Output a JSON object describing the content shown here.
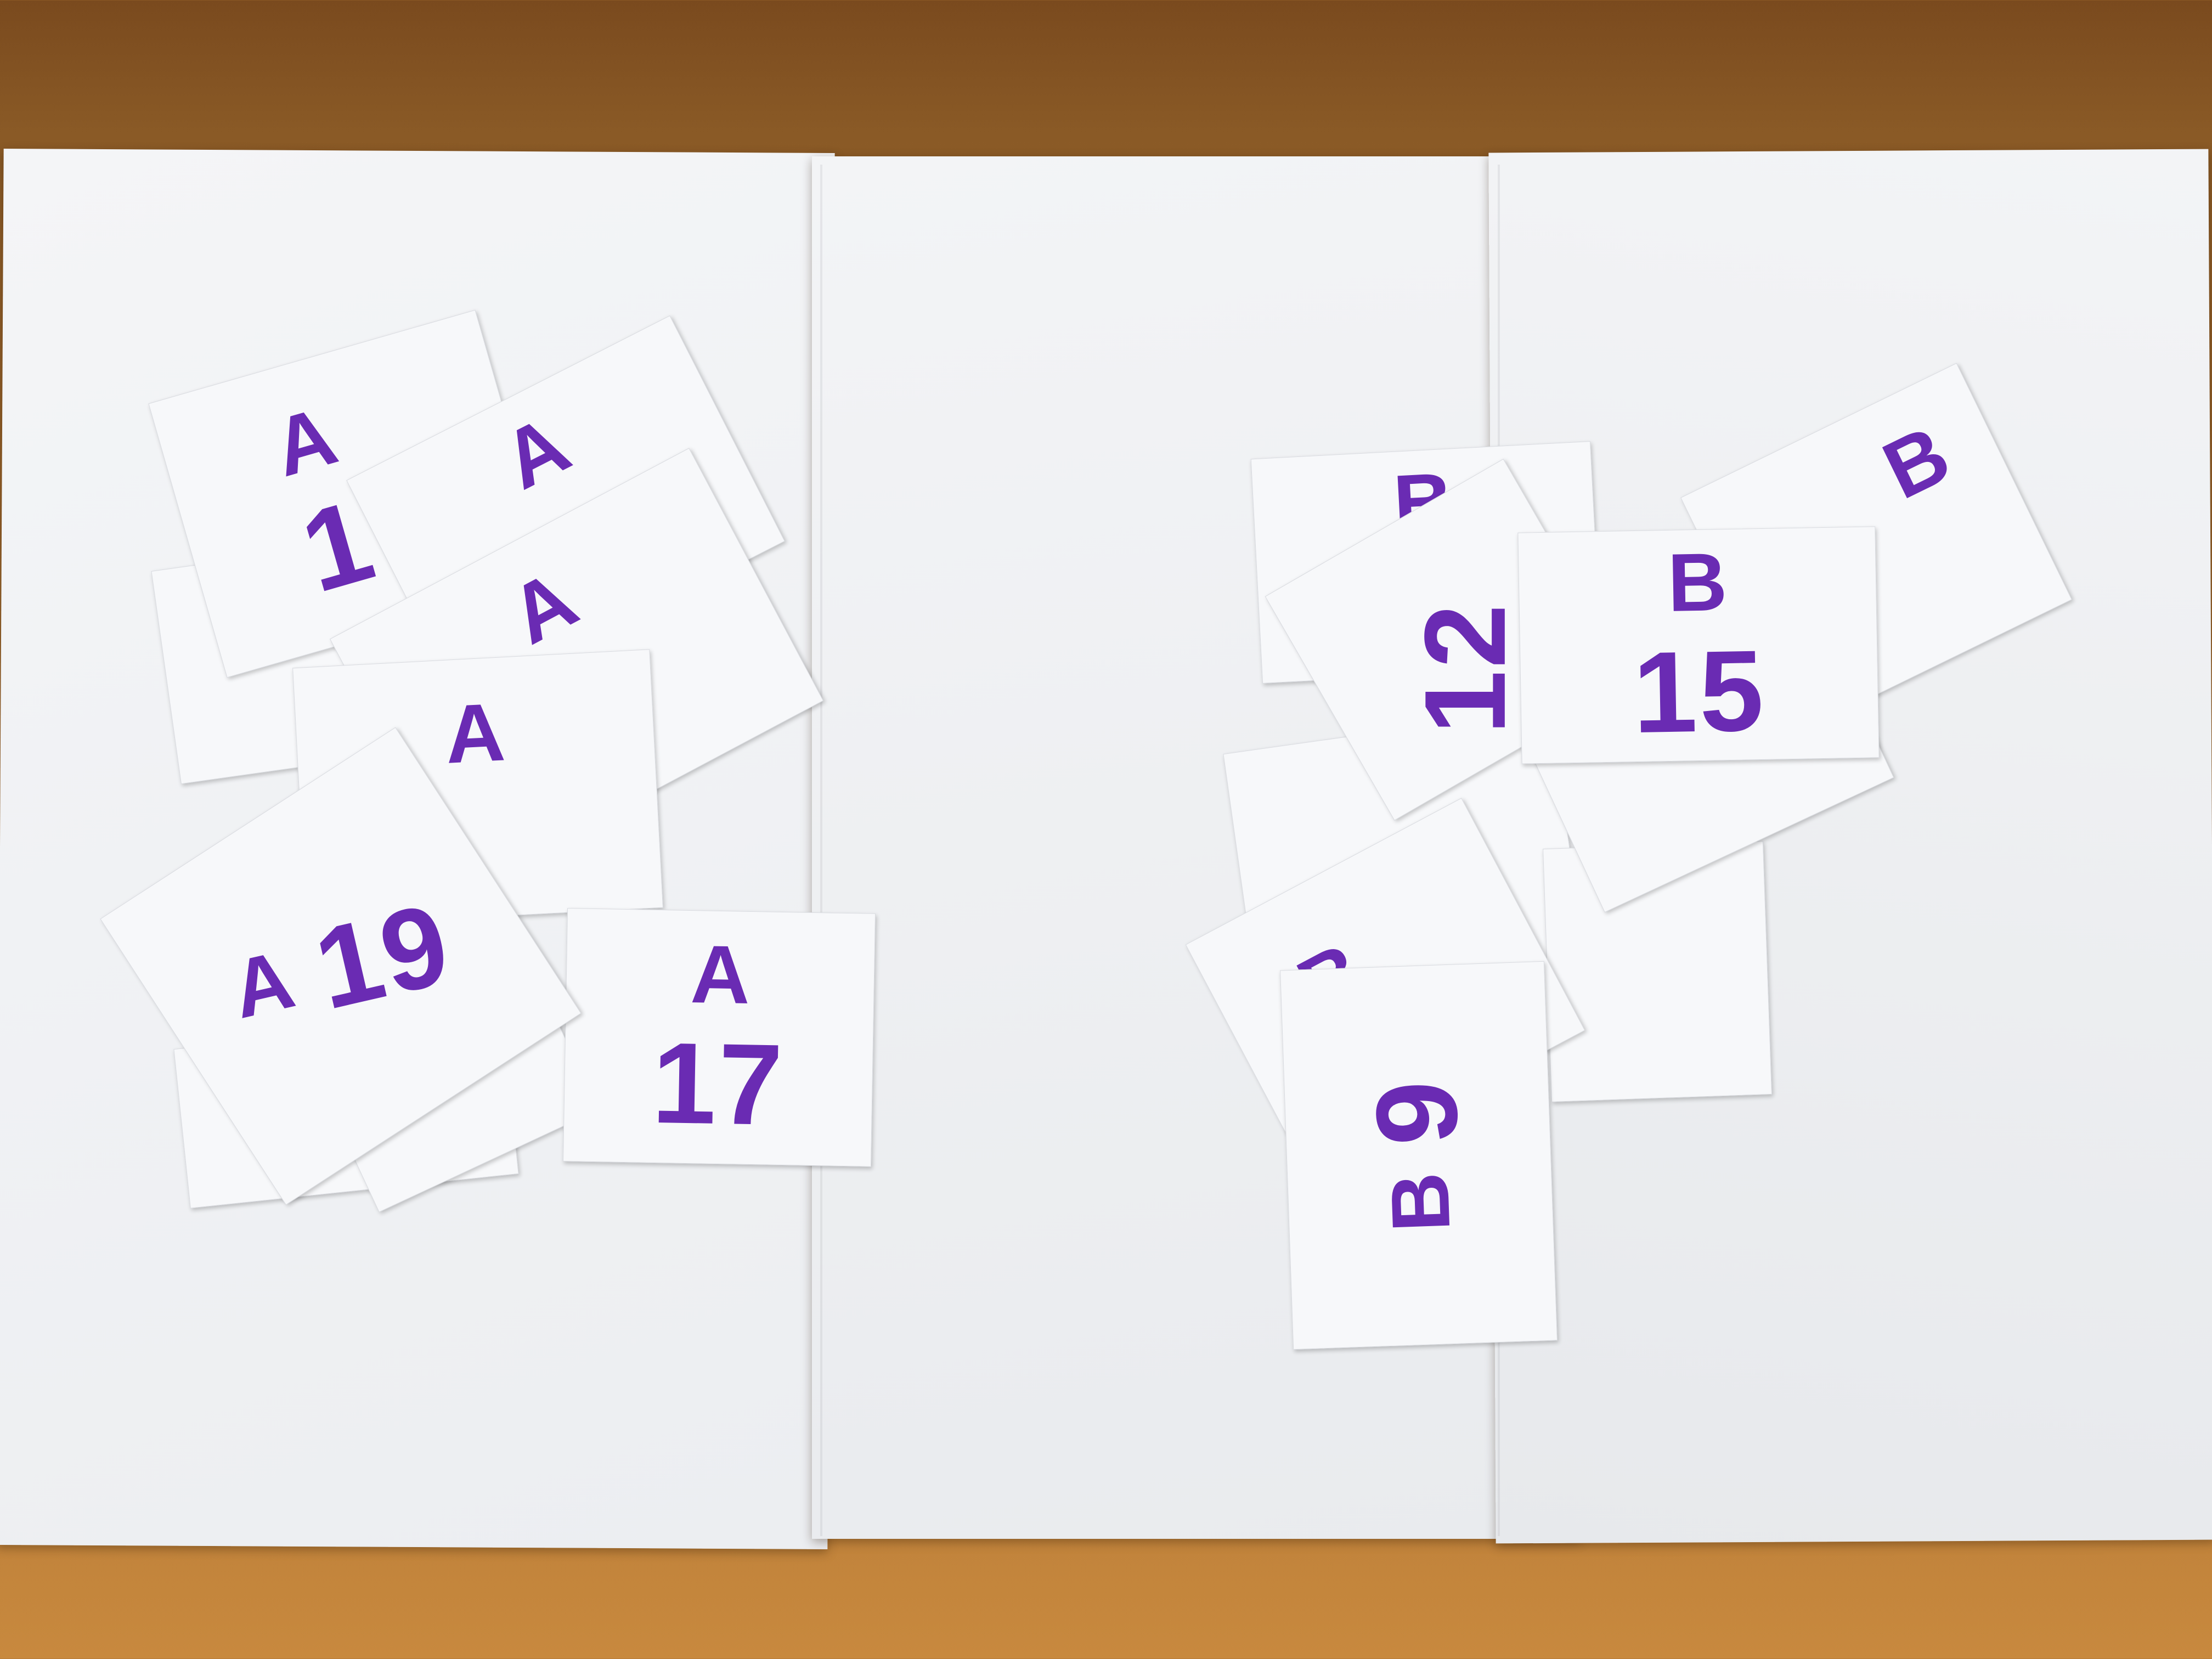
{
  "cards": {
    "a_top": {
      "letter": "A",
      "num": "1"
    },
    "a_second": {
      "letter": "A"
    },
    "a_third": {
      "letter": "A"
    },
    "a_fourth": {
      "letter": "A"
    },
    "a_19": {
      "letter": "A",
      "num": "19"
    },
    "a_17": {
      "letter": "A",
      "num": "17"
    },
    "b_top": {
      "letter": "B"
    },
    "b_back": {
      "letter": "B"
    },
    "b_12": {
      "num": "12"
    },
    "b_15": {
      "letter": "B",
      "num": "15"
    },
    "b_lower": {
      "letter": "B"
    },
    "b_9": {
      "letter": "B",
      "num": "9"
    }
  },
  "ink_color": "#6a2bb3",
  "background_color": "#8a5a26",
  "paper_color": "#f1f2f4"
}
